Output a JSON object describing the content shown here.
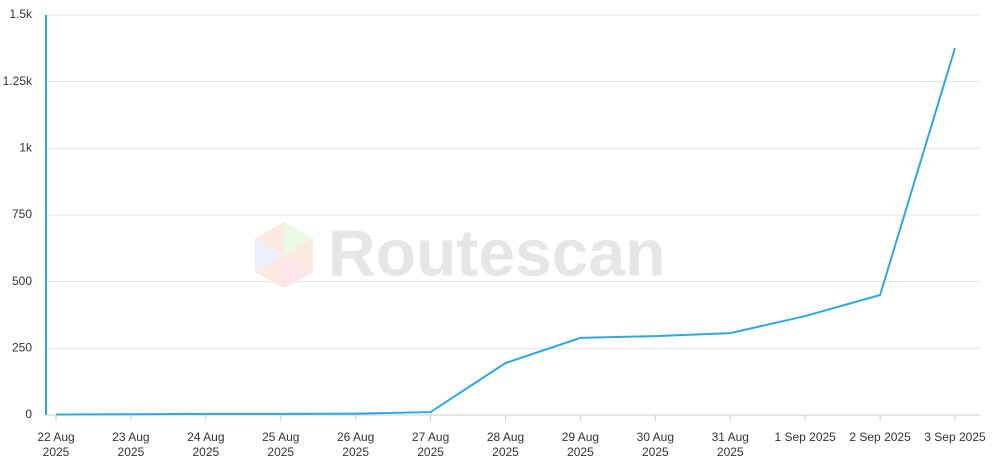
{
  "chart_data": {
    "type": "line",
    "watermark": "Routescan",
    "categories": [
      "22 Aug 2025",
      "23 Aug 2025",
      "24 Aug 2025",
      "25 Aug 2025",
      "26 Aug 2025",
      "27 Aug 2025",
      "28 Aug 2025",
      "29 Aug 2025",
      "30 Aug 2025",
      "31 Aug 2025",
      "1 Sep 2025",
      "2 Sep 2025",
      "3 Sep 2025"
    ],
    "series": [
      {
        "color": "#2ea8e0",
        "values": [
          2,
          3,
          4,
          4,
          5,
          11,
          195,
          289,
          296,
          307,
          371,
          450,
          1376
        ]
      }
    ],
    "ylim": [
      0,
      1500
    ],
    "yticks": [
      0,
      250,
      500,
      750,
      {
        "value": 1000,
        "label": "1k"
      },
      {
        "value": 1250,
        "label": "1.25k"
      },
      {
        "value": 1500,
        "label": "1.5k"
      }
    ],
    "grid": true
  }
}
